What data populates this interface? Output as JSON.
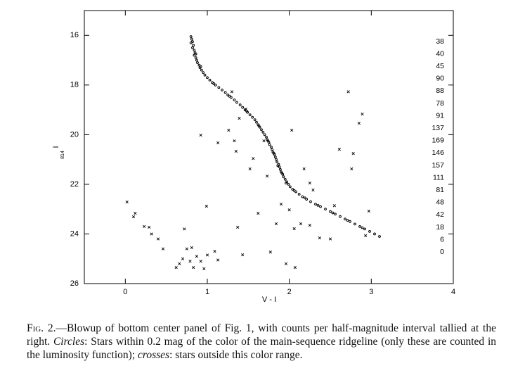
{
  "chart_data": {
    "type": "scatter",
    "x_label": "V - I",
    "y_label": "I",
    "y_label_sub": "814",
    "xlim": [
      -0.5,
      4
    ],
    "ylim": [
      26,
      15
    ],
    "xticks": [
      0,
      1,
      2,
      3,
      4
    ],
    "yticks": [
      16,
      18,
      20,
      22,
      24,
      26
    ],
    "counts": [
      38,
      40,
      45,
      90,
      88,
      78,
      91,
      137,
      169,
      146,
      157,
      111,
      81,
      48,
      42,
      18,
      6,
      0
    ],
    "series": [
      {
        "marker": "circle",
        "color": "#000000",
        "x": [
          0.8,
          0.81,
          0.82,
          0.8,
          0.83,
          0.82,
          0.84,
          0.85,
          0.84,
          0.86,
          0.87,
          0.88,
          0.9,
          0.91,
          0.93,
          0.95,
          0.97,
          1.0,
          1.03,
          1.06,
          1.1,
          1.14,
          1.18,
          1.22,
          1.25,
          1.29,
          1.33,
          1.36,
          1.4,
          1.43,
          1.46,
          1.49,
          1.52,
          1.55,
          1.58,
          1.6,
          1.62,
          1.64,
          1.66,
          1.68,
          1.7,
          1.72,
          1.73,
          1.75,
          1.76,
          1.78,
          1.79,
          1.8,
          1.82,
          1.83,
          1.84,
          1.85,
          1.87,
          1.88,
          1.89,
          1.9,
          1.92,
          1.93,
          1.95,
          1.97,
          1.99,
          2.01,
          2.04,
          2.08,
          2.12,
          2.16,
          2.21,
          2.26,
          2.32,
          2.38,
          2.44,
          2.5,
          2.56,
          2.62,
          2.68,
          2.74,
          2.8,
          2.86,
          2.92,
          2.98,
          3.04,
          3.1,
          0.86,
          0.92,
          1.08,
          1.27,
          1.48,
          1.63,
          1.74,
          1.81,
          1.86,
          1.91,
          1.96,
          2.06,
          2.19,
          2.35,
          2.53,
          2.71,
          2.89
        ],
        "values": [
          16.05,
          16.15,
          16.25,
          16.3,
          16.4,
          16.5,
          16.6,
          16.7,
          16.8,
          16.9,
          17.0,
          17.1,
          17.2,
          17.3,
          17.4,
          17.5,
          17.6,
          17.7,
          17.8,
          17.9,
          18.0,
          18.1,
          18.2,
          18.3,
          18.4,
          18.5,
          18.6,
          18.7,
          18.8,
          18.9,
          19.0,
          19.1,
          19.2,
          19.3,
          19.4,
          19.5,
          19.6,
          19.7,
          19.8,
          19.9,
          20.0,
          20.1,
          20.2,
          20.3,
          20.4,
          20.5,
          20.6,
          20.7,
          20.8,
          20.9,
          21.0,
          21.1,
          21.2,
          21.3,
          21.4,
          21.5,
          21.6,
          21.7,
          21.8,
          21.9,
          22.0,
          22.1,
          22.2,
          22.3,
          22.4,
          22.5,
          22.6,
          22.7,
          22.8,
          22.9,
          23.0,
          23.1,
          23.2,
          23.3,
          23.4,
          23.5,
          23.6,
          23.7,
          23.8,
          23.9,
          24.0,
          24.1,
          16.75,
          17.25,
          17.95,
          18.45,
          19.05,
          19.65,
          20.25,
          20.75,
          21.25,
          21.55,
          21.95,
          22.25,
          22.55,
          22.85,
          23.15,
          23.45,
          23.75
        ]
      },
      {
        "marker": "cross",
        "color": "#000000",
        "x": [
          0.02,
          0.1,
          0.12,
          0.23,
          0.29,
          0.32,
          0.4,
          0.46,
          0.62,
          0.66,
          0.7,
          0.75,
          0.72,
          0.79,
          0.83,
          0.87,
          0.81,
          0.92,
          0.96,
          1.0,
          1.09,
          1.13,
          0.99,
          0.92,
          1.13,
          1.26,
          1.33,
          1.35,
          1.37,
          1.43,
          1.39,
          1.3,
          1.47,
          1.52,
          1.56,
          1.62,
          1.69,
          1.73,
          1.77,
          1.84,
          1.9,
          1.96,
          2.0,
          2.03,
          2.06,
          2.07,
          2.18,
          2.25,
          2.29,
          2.37,
          2.5,
          2.55,
          2.61,
          2.72,
          2.76,
          2.78,
          2.85,
          2.89,
          2.97,
          2.93,
          2.25,
          2.14
        ],
        "values": [
          22.71,
          23.31,
          23.17,
          23.7,
          23.73,
          24.0,
          24.2,
          24.6,
          25.35,
          25.2,
          25.0,
          24.6,
          23.8,
          25.1,
          25.35,
          24.9,
          24.55,
          25.1,
          25.4,
          24.85,
          24.7,
          25.05,
          22.88,
          20.02,
          20.33,
          19.82,
          20.25,
          20.67,
          23.73,
          24.84,
          19.34,
          18.27,
          18.97,
          21.38,
          20.96,
          23.17,
          20.25,
          21.67,
          24.73,
          23.59,
          22.8,
          25.2,
          23.03,
          19.82,
          23.79,
          25.35,
          21.38,
          21.95,
          22.23,
          24.16,
          24.2,
          22.86,
          20.59,
          18.27,
          21.38,
          20.76,
          19.54,
          19.17,
          23.08,
          24.07,
          23.65,
          23.59
        ]
      }
    ]
  },
  "caption": [
    {
      "text": "Fig. 2.",
      "style": "small-caps"
    },
    {
      "text": "—Blowup of bottom center panel of Fig. 1, with counts per half-magnitude interval tallied at the right. ",
      "style": "normal"
    },
    {
      "text": "Circles",
      "style": "italic"
    },
    {
      "text": ": Stars within 0.2 mag of the color of the main-sequence ridgeline (only these are counted in the luminosity function); ",
      "style": "normal"
    },
    {
      "text": "crosses",
      "style": "italic"
    },
    {
      "text": ": stars outside this color range.",
      "style": "normal"
    }
  ]
}
